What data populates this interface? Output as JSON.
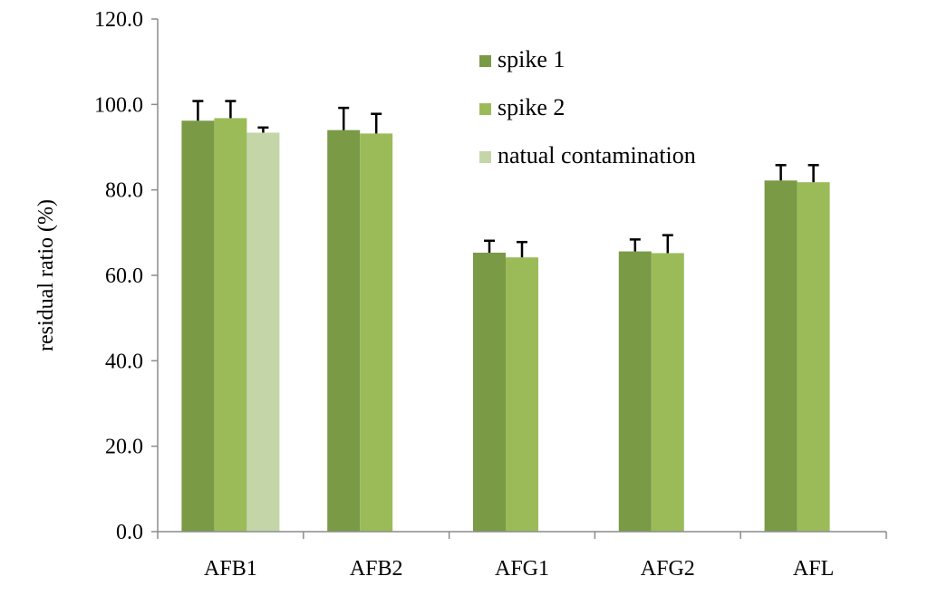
{
  "chart_data": {
    "type": "bar",
    "title": "",
    "xlabel": "",
    "ylabel": "residual ratio (%)",
    "ylim": [
      0,
      120
    ],
    "yticks": [
      "0.0",
      "20.0",
      "40.0",
      "60.0",
      "80.0",
      "100.0",
      "120.0"
    ],
    "grid": false,
    "legend_position": "top-right",
    "categories": [
      "AFB1",
      "AFB2",
      "AFG1",
      "AFG2",
      "AFL"
    ],
    "error_bars": "positive",
    "series": [
      {
        "name": "spike 1",
        "color": "#7a9a46",
        "values": [
          96.2,
          94.0,
          65.3,
          65.6,
          82.2
        ],
        "errors": [
          4.6,
          5.2,
          2.8,
          2.8,
          3.6
        ]
      },
      {
        "name": "spike 2",
        "color": "#9bbb59",
        "values": [
          96.8,
          93.2,
          64.2,
          65.2,
          81.8
        ],
        "errors": [
          4.0,
          4.6,
          3.6,
          4.2,
          4.0
        ]
      },
      {
        "name": "natual contamination",
        "color": "#c4d6a8",
        "values": [
          93.4,
          null,
          null,
          null,
          null
        ],
        "errors": [
          1.2,
          null,
          null,
          null,
          null
        ]
      }
    ]
  }
}
